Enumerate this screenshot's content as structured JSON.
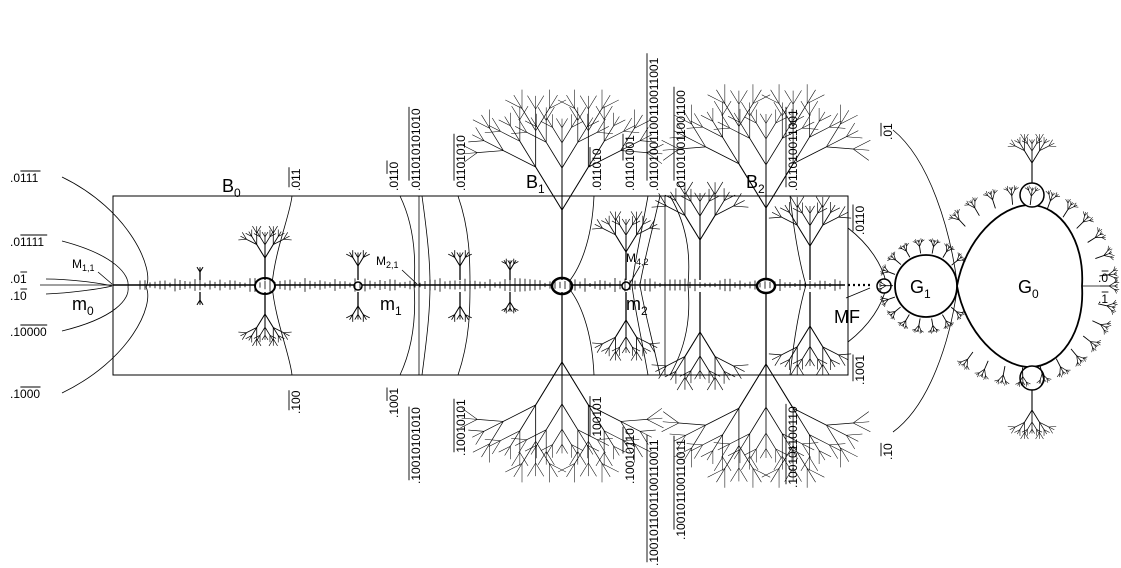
{
  "regions": {
    "B0": {
      "base": "B",
      "sub": "0"
    },
    "B1": {
      "base": "B",
      "sub": "1"
    },
    "B2": {
      "base": "B",
      "sub": "2"
    },
    "m0": {
      "base": "m",
      "sub": "0"
    },
    "m1": {
      "base": "m",
      "sub": "1"
    },
    "m2": {
      "base": "m",
      "sub": "2"
    },
    "M11": {
      "base": "M",
      "sub": "1,1"
    },
    "M21": {
      "base": "M",
      "sub": "2,1"
    },
    "M42": {
      "base": "M",
      "sub": "4,2"
    },
    "G1": {
      "base": "G",
      "sub": "1"
    },
    "G0": {
      "base": "G",
      "sub": "0"
    },
    "MF": "MF"
  },
  "angles_left": [
    {
      "pre": ".0",
      "rep": "111"
    },
    {
      "pre": ".0",
      "rep": "1111"
    },
    {
      "pre": ".0",
      "rep": "1"
    },
    {
      "pre": ".1",
      "rep": "0"
    },
    {
      "pre": ".1",
      "rep": "0000"
    },
    {
      "pre": ".1",
      "rep": "000"
    }
  ],
  "angles_top": [
    {
      "pre": ".",
      "rep": "011"
    },
    {
      "pre": ".01",
      "rep": "10"
    },
    {
      "pre": ".0",
      "rep": "11010101010"
    },
    {
      "pre": ".0",
      "rep": "1101010"
    },
    {
      "pre": ".011",
      "rep": "010"
    },
    {
      "pre": ".0110",
      "rep": "1001"
    },
    {
      "pre": ".0",
      "rep": "1101001100110011001"
    },
    {
      "pre": ".0",
      "rep": "11010011001100"
    },
    {
      "pre": ".",
      "rep": "011010011001"
    }
  ],
  "angles_bottom": [
    {
      "pre": ".",
      "rep": "100"
    },
    {
      "pre": ".10",
      "rep": "01"
    },
    {
      "pre": ".",
      "rep": "10010101010"
    },
    {
      "pre": ".",
      "rep": "10010101"
    },
    {
      "pre": ".",
      "rep": "100101"
    },
    {
      "pre": ".1001",
      "rep": "0110"
    },
    {
      "pre": ".",
      "rep": "1001011001100110011"
    },
    {
      "pre": ".1",
      "rep": "00101100110011"
    },
    {
      "pre": ".",
      "rep": "100101100110"
    }
  ],
  "angles_right": [
    {
      "pre": ".",
      "rep": "0110"
    },
    {
      "pre": ".",
      "rep": "1001"
    },
    {
      "pre": ".",
      "rep": "01"
    },
    {
      "pre": ".",
      "rep": "10"
    },
    {
      "pre": ".",
      "rep": "0"
    },
    {
      "pre": ".",
      "rep": "1"
    }
  ]
}
